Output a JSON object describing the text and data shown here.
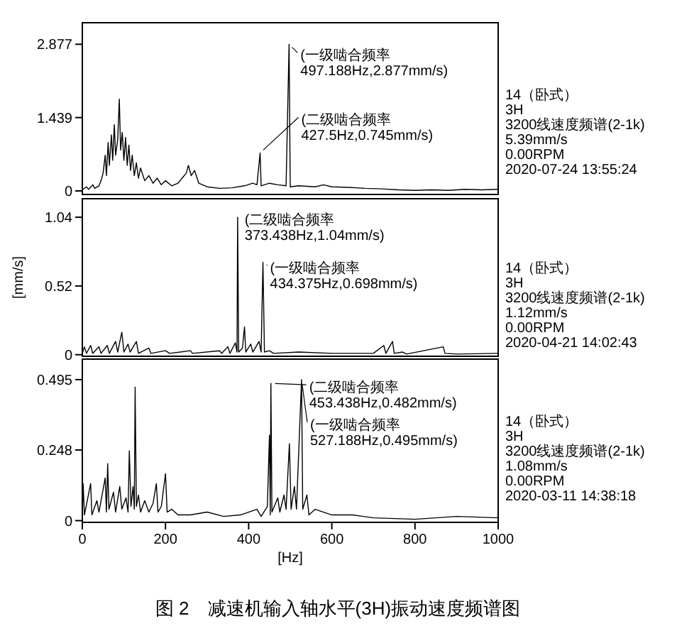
{
  "chart_data": [
    {
      "type": "line",
      "color": "#000000",
      "xlim": [
        0,
        1000
      ],
      "ylim": [
        -0.07,
        3.3
      ],
      "yticks": [
        0,
        1.439,
        2.877
      ],
      "tick_labels": "y",
      "x": [
        0,
        10,
        15,
        25,
        30,
        40,
        45,
        50,
        55,
        58,
        62,
        65,
        70,
        73,
        77,
        80,
        85,
        89,
        92,
        96,
        100,
        104,
        108,
        112,
        116,
        120,
        125,
        130,
        135,
        140,
        150,
        160,
        170,
        180,
        190,
        200,
        215,
        230,
        240,
        250,
        255,
        262,
        270,
        280,
        300,
        330,
        360,
        390,
        410,
        420,
        427.5,
        430,
        450,
        470,
        490,
        497.188,
        500,
        520,
        560,
        580,
        600,
        640,
        680,
        720,
        760,
        800,
        840,
        880,
        920,
        960,
        1000
      ],
      "values": [
        0.02,
        0.08,
        0.03,
        0.12,
        0.05,
        0.1,
        0.2,
        0.35,
        0.7,
        0.3,
        0.95,
        0.5,
        1.1,
        0.6,
        1.3,
        0.7,
        1.0,
        1.8,
        0.8,
        1.15,
        0.6,
        1.05,
        0.5,
        0.9,
        0.4,
        0.7,
        0.3,
        0.55,
        0.25,
        0.45,
        0.2,
        0.3,
        0.15,
        0.25,
        0.12,
        0.2,
        0.1,
        0.15,
        0.25,
        0.35,
        0.5,
        0.3,
        0.4,
        0.15,
        0.08,
        0.05,
        0.06,
        0.1,
        0.15,
        0.12,
        0.745,
        0.1,
        0.15,
        0.12,
        0.1,
        2.877,
        0.08,
        0.1,
        0.08,
        0.12,
        0.08,
        0.07,
        0.05,
        0.04,
        0.02,
        0.01,
        0.02,
        0.01,
        0.03,
        0.02,
        0.03
      ],
      "annotations": [
        {
          "text": "(一级啮合频率 497.188Hz,2.877mm/s)",
          "x": 497.188,
          "y": 2.877
        },
        {
          "text": "(二级啮合频率 427.5Hz,0.745mm/s)",
          "x": 427.5,
          "y": 0.745
        },
        "14（卧式）",
        "3H",
        "3200线速度频谱(2-1k)",
        "5.39mm/s",
        "0.00RPM",
        "2020-07-24 13:55:24"
      ]
    },
    {
      "type": "line",
      "color": "#000000",
      "xlim": [
        0,
        1000
      ],
      "ylim": [
        -0.012,
        1.18
      ],
      "yticks": [
        0,
        0.52,
        1.04
      ],
      "tick_labels": "y",
      "ylabel": "[mm/s]",
      "x": [
        0,
        5,
        10,
        20,
        25,
        40,
        45,
        60,
        65,
        80,
        85,
        95,
        100,
        110,
        115,
        130,
        135,
        160,
        165,
        200,
        210,
        260,
        265,
        330,
        335,
        350,
        355,
        368,
        372,
        373.438,
        376,
        385,
        390,
        393,
        405,
        410,
        425,
        430,
        434.375,
        438,
        450,
        460,
        520,
        600,
        700,
        725,
        730,
        746,
        750,
        770,
        780,
        868,
        872,
        900,
        1000
      ],
      "values": [
        0.01,
        0.06,
        0.01,
        0.07,
        0.01,
        0.06,
        0.01,
        0.07,
        0.01,
        0.1,
        0.02,
        0.17,
        0.02,
        0.08,
        0.02,
        0.1,
        0.01,
        0.05,
        0.01,
        0.03,
        0.01,
        0.03,
        0.01,
        0.03,
        0.01,
        0.06,
        0.01,
        0.09,
        0.02,
        1.04,
        0.02,
        0.05,
        0.21,
        0.02,
        0.08,
        0.02,
        0.1,
        0.02,
        0.698,
        0.02,
        0.03,
        0.01,
        0.02,
        0.01,
        0.01,
        0.07,
        0.01,
        0.1,
        0.01,
        0.02,
        0.005,
        0.06,
        0.01,
        0.005,
        0.01
      ],
      "annotations": [
        {
          "text": "(二级啮合频率 373.438Hz,1.04mm/s)",
          "x": 373.438,
          "y": 1.04
        },
        {
          "text": "(一级啮合频率 434.375Hz,0.698mm/s)",
          "x": 434.375,
          "y": 0.698
        },
        "14（卧式）",
        "3H",
        "3200线速度频谱(2-1k)",
        "1.12mm/s",
        "0.00RPM",
        "2020-04-21 14:02:43"
      ]
    },
    {
      "type": "line",
      "color": "#000000",
      "xlim": [
        0,
        1000
      ],
      "ylim": [
        -0.006,
        0.567
      ],
      "yticks": [
        0,
        0.248,
        0.495
      ],
      "xticks": [
        0,
        200,
        400,
        600,
        800,
        1000
      ],
      "xlabel": "[Hz]",
      "x": [
        0,
        2,
        5,
        20,
        23,
        35,
        40,
        55,
        58,
        61,
        64,
        75,
        80,
        90,
        95,
        105,
        110,
        113,
        117,
        122,
        125,
        127,
        130,
        135,
        140,
        150,
        160,
        170,
        178,
        182,
        190,
        200,
        204,
        215,
        230,
        260,
        300,
        340,
        380,
        420,
        430,
        445,
        450,
        452,
        453.438,
        456,
        470,
        475,
        485,
        490,
        498,
        502,
        510,
        515,
        527.188,
        530,
        540,
        545,
        560,
        600,
        650,
        700,
        800,
        900,
        1000
      ],
      "values": [
        0.01,
        0.13,
        0.02,
        0.13,
        0.02,
        0.07,
        0.03,
        0.15,
        0.03,
        0.2,
        0.04,
        0.1,
        0.03,
        0.12,
        0.04,
        0.08,
        0.03,
        0.245,
        0.05,
        0.12,
        0.04,
        0.469,
        0.05,
        0.09,
        0.03,
        0.07,
        0.03,
        0.06,
        0.13,
        0.03,
        0.05,
        0.165,
        0.03,
        0.04,
        0.02,
        0.02,
        0.03,
        0.015,
        0.02,
        0.04,
        0.015,
        0.05,
        0.3,
        0.02,
        0.482,
        0.03,
        0.08,
        0.03,
        0.09,
        0.04,
        0.27,
        0.04,
        0.12,
        0.04,
        0.495,
        0.04,
        0.09,
        0.02,
        0.04,
        0.02,
        0.02,
        0.01,
        0.005,
        0.015,
        0.01
      ],
      "annotations": [
        {
          "text": "(二级啮合频率 453.438Hz,0.482mm/s)",
          "x": 453.438,
          "y": 0.482
        },
        {
          "text": "(一级啮合频率 527.188Hz,0.495mm/s)",
          "x": 527.188,
          "y": 0.495
        },
        "14（卧式）",
        "3H",
        "3200线速度频谱(2-1k)",
        "1.08mm/s",
        "0.00RPM",
        "2020-03-11 14:38:18",
        "图 2　减速机输入轴水平(3H)振动速度频谱图"
      ]
    }
  ]
}
